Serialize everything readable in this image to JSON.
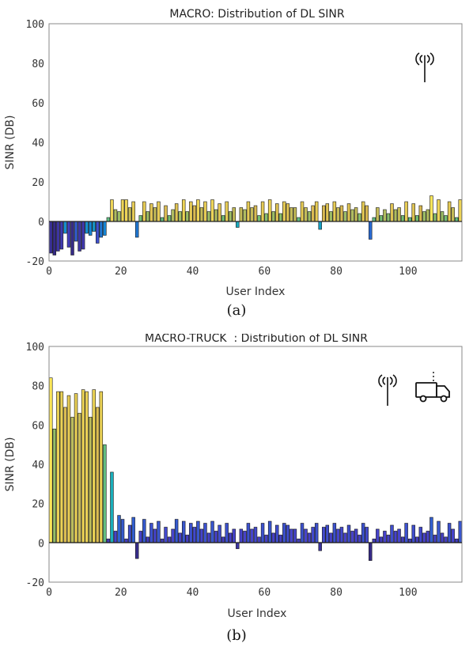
{
  "chart_data": [
    {
      "type": "bar",
      "title": "MACRO: Distribution of DL SINR",
      "xlabel": "User Index",
      "ylabel": "SINR (DB)",
      "xlim": [
        0,
        115
      ],
      "ylim": [
        -20,
        100
      ],
      "xticks": [
        0,
        20,
        40,
        60,
        80,
        100
      ],
      "yticks": [
        -20,
        0,
        20,
        40,
        60,
        80,
        100
      ],
      "grid": false,
      "colormap": "parula",
      "icons": [
        "antenna-icon"
      ],
      "x": [
        1,
        2,
        3,
        4,
        5,
        6,
        7,
        8,
        9,
        10,
        11,
        12,
        13,
        14,
        15,
        16,
        17,
        18,
        19,
        20,
        21,
        22,
        23,
        24,
        25,
        26,
        27,
        28,
        29,
        30,
        31,
        32,
        33,
        34,
        35,
        36,
        37,
        38,
        39,
        40,
        41,
        42,
        43,
        44,
        45,
        46,
        47,
        48,
        49,
        50,
        51,
        52,
        53,
        54,
        55,
        56,
        57,
        58,
        59,
        60,
        61,
        62,
        63,
        64,
        65,
        66,
        67,
        68,
        69,
        70,
        71,
        72,
        73,
        74,
        75,
        76,
        77,
        78,
        79,
        80,
        81,
        82,
        83,
        84,
        85,
        86,
        87,
        88,
        89,
        90,
        91,
        92,
        93,
        94,
        95,
        96,
        97,
        98,
        99,
        100,
        101,
        102,
        103,
        104,
        105,
        106,
        107,
        108,
        109,
        110,
        111,
        112,
        113,
        114,
        115
      ],
      "values": [
        -16,
        -17,
        -15,
        -14,
        -6,
        -13,
        -17,
        -10,
        -15,
        -14,
        -6,
        -7,
        -5,
        -11,
        -8,
        -7,
        2,
        11,
        6,
        5,
        11,
        11,
        7,
        10,
        -8,
        3,
        10,
        5,
        9,
        7,
        10,
        2,
        8,
        3,
        6,
        9,
        5,
        11,
        5,
        10,
        8,
        11,
        7,
        10,
        5,
        11,
        6,
        9,
        3,
        10,
        5,
        7,
        -3,
        7,
        6,
        10,
        7,
        8,
        3,
        10,
        4,
        11,
        5,
        9,
        4,
        10,
        9,
        7,
        7,
        2,
        10,
        7,
        5,
        8,
        10,
        -4,
        8,
        9,
        5,
        10,
        7,
        8,
        5,
        9,
        6,
        7,
        4,
        10,
        8,
        -9,
        2,
        7,
        3,
        6,
        4,
        9,
        6,
        7,
        3,
        10,
        2,
        9,
        3,
        8,
        5,
        6,
        13,
        4,
        11,
        5,
        3,
        10,
        7,
        2,
        11
      ]
    },
    {
      "type": "bar",
      "title": "MACRO-TRUCK  : Distribution of DL SINR",
      "xlabel": "User Index",
      "ylabel": "SINR (DB)",
      "xlim": [
        0,
        115
      ],
      "ylim": [
        -20,
        100
      ],
      "xticks": [
        0,
        20,
        40,
        60,
        80,
        100
      ],
      "yticks": [
        -20,
        0,
        20,
        40,
        60,
        80,
        100
      ],
      "grid": false,
      "colormap": "parula",
      "icons": [
        "antenna-icon",
        "truck-icon"
      ],
      "x": [
        1,
        2,
        3,
        4,
        5,
        6,
        7,
        8,
        9,
        10,
        11,
        12,
        13,
        14,
        15,
        16,
        17,
        18,
        19,
        20,
        21,
        22,
        23,
        24,
        25,
        26,
        27,
        28,
        29,
        30,
        31,
        32,
        33,
        34,
        35,
        36,
        37,
        38,
        39,
        40,
        41,
        42,
        43,
        44,
        45,
        46,
        47,
        48,
        49,
        50,
        51,
        52,
        53,
        54,
        55,
        56,
        57,
        58,
        59,
        60,
        61,
        62,
        63,
        64,
        65,
        66,
        67,
        68,
        69,
        70,
        71,
        72,
        73,
        74,
        75,
        76,
        77,
        78,
        79,
        80,
        81,
        82,
        83,
        84,
        85,
        86,
        87,
        88,
        89,
        90,
        91,
        92,
        93,
        94,
        95,
        96,
        97,
        98,
        99,
        100,
        101,
        102,
        103,
        104,
        105,
        106,
        107,
        108,
        109,
        110,
        111,
        112,
        113,
        114,
        115
      ],
      "values": [
        84,
        58,
        77,
        77,
        69,
        75,
        64,
        76,
        66,
        78,
        77,
        64,
        78,
        69,
        77,
        50,
        2,
        36,
        6,
        14,
        12,
        2,
        9,
        13,
        -8,
        6,
        12,
        3,
        10,
        7,
        11,
        2,
        8,
        3,
        7,
        12,
        5,
        11,
        4,
        10,
        8,
        11,
        7,
        10,
        5,
        11,
        6,
        9,
        3,
        10,
        5,
        7,
        -3,
        7,
        6,
        10,
        7,
        8,
        3,
        10,
        4,
        11,
        5,
        9,
        4,
        10,
        9,
        7,
        7,
        2,
        10,
        7,
        5,
        8,
        10,
        -4,
        8,
        9,
        5,
        10,
        7,
        8,
        5,
        9,
        6,
        7,
        4,
        10,
        8,
        -9,
        2,
        7,
        3,
        6,
        4,
        9,
        6,
        7,
        3,
        10,
        2,
        9,
        3,
        8,
        5,
        6,
        13,
        4,
        11,
        5,
        3,
        10,
        7,
        2,
        11
      ]
    }
  ],
  "captions": [
    "(a)",
    "(b)"
  ]
}
